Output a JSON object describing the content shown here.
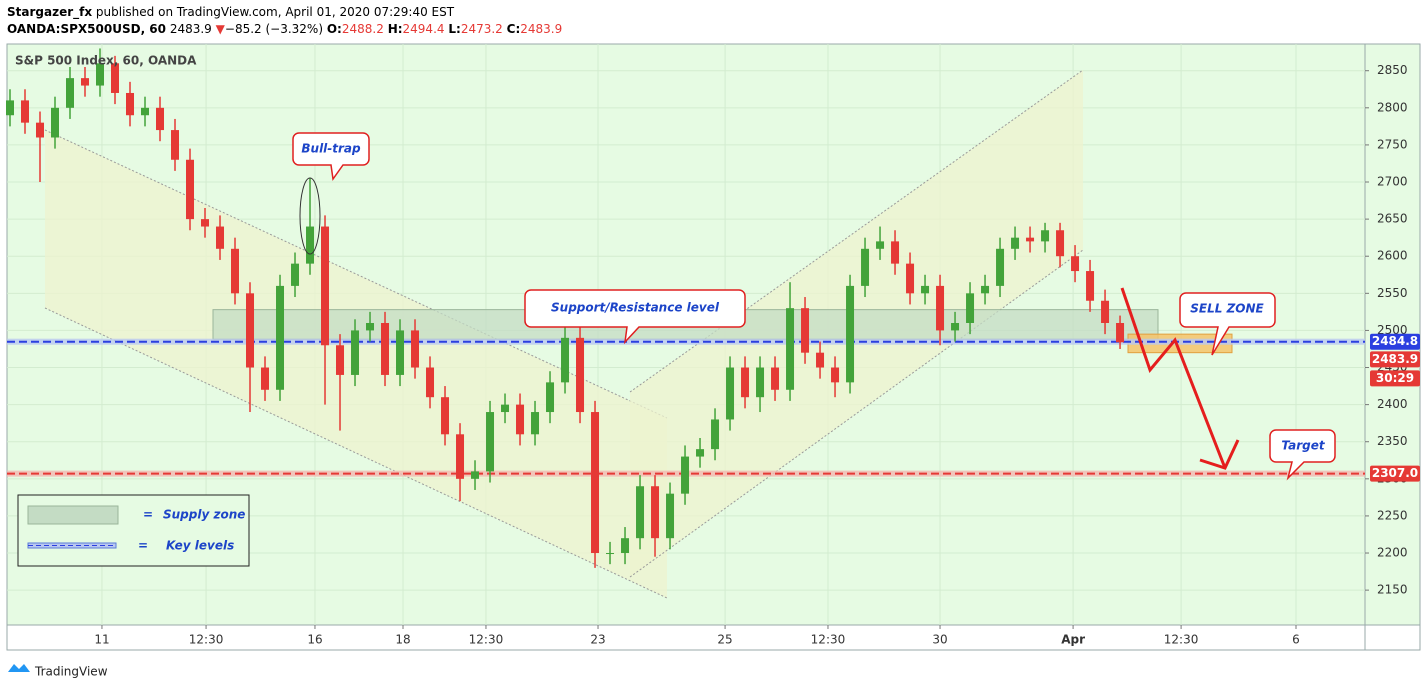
{
  "header": {
    "publisher": "Stargazer_fx",
    "published": "published on TradingView.com, April 01, 2020 07:29:40 EST",
    "symbol": "OANDA:SPX500USD, 60",
    "price": "2483.9",
    "arrow": "▼",
    "change": "−85.2 (−3.32%)",
    "o_label": "O:",
    "open": "2488.2",
    "h_label": "H:",
    "high": "2494.4",
    "l_label": "L:",
    "low": "2473.2",
    "c_label": "C:",
    "close": "2483.9"
  },
  "chart_data": {
    "type": "candlestick",
    "title": "S&P 500 Index, 60, OANDA",
    "x": [
      0,
      1,
      2,
      3,
      4,
      5,
      6,
      7,
      8,
      9,
      10,
      11,
      12,
      13,
      14,
      15,
      16,
      17,
      18,
      19,
      20,
      21,
      22,
      23,
      24,
      25,
      26,
      27,
      28,
      29,
      30,
      31,
      32,
      33,
      34,
      35,
      36,
      37,
      38,
      39,
      40,
      41,
      42,
      43,
      44,
      45,
      46,
      47,
      48,
      49,
      50,
      51,
      52,
      53,
      54,
      55,
      56,
      57,
      58,
      59,
      60,
      61,
      62,
      63,
      64,
      65,
      66,
      67,
      68,
      69,
      70,
      71,
      72,
      73,
      74
    ],
    "open": [
      2790,
      2810,
      2780,
      2760,
      2800,
      2840,
      2830,
      2860,
      2820,
      2790,
      2800,
      2770,
      2730,
      2650,
      2640,
      2610,
      2550,
      2450,
      2420,
      2560,
      2590,
      2640,
      2480,
      2440,
      2500,
      2510,
      2440,
      2500,
      2450,
      2410,
      2360,
      2300,
      2310,
      2390,
      2400,
      2360,
      2390,
      2430,
      2490,
      2390,
      2200,
      2200,
      2220,
      2290,
      2220,
      2280,
      2330,
      2340,
      2380,
      2450,
      2410,
      2450,
      2420,
      2530,
      2470,
      2450,
      2430,
      2560,
      2610,
      2620,
      2590,
      2550,
      2560,
      2500,
      2510,
      2550,
      2560,
      2610,
      2625,
      2620,
      2635,
      2600,
      2580,
      2540,
      2510
    ],
    "high": [
      2825,
      2825,
      2795,
      2815,
      2855,
      2855,
      2880,
      2870,
      2835,
      2815,
      2815,
      2785,
      2745,
      2665,
      2655,
      2625,
      2565,
      2465,
      2575,
      2605,
      2705,
      2655,
      2495,
      2515,
      2525,
      2525,
      2515,
      2515,
      2465,
      2425,
      2375,
      2325,
      2405,
      2415,
      2415,
      2405,
      2445,
      2505,
      2505,
      2405,
      2215,
      2235,
      2305,
      2305,
      2295,
      2345,
      2355,
      2395,
      2465,
      2465,
      2465,
      2465,
      2565,
      2545,
      2485,
      2465,
      2575,
      2625,
      2640,
      2635,
      2605,
      2575,
      2575,
      2525,
      2565,
      2575,
      2625,
      2640,
      2640,
      2645,
      2645,
      2615,
      2595,
      2555,
      2520
    ],
    "low": [
      2775,
      2765,
      2700,
      2745,
      2785,
      2815,
      2815,
      2805,
      2775,
      2775,
      2755,
      2715,
      2635,
      2625,
      2595,
      2535,
      2390,
      2405,
      2405,
      2545,
      2575,
      2400,
      2365,
      2425,
      2485,
      2425,
      2425,
      2435,
      2395,
      2345,
      2270,
      2285,
      2295,
      2375,
      2345,
      2345,
      2375,
      2415,
      2375,
      2180,
      2185,
      2185,
      2205,
      2195,
      2205,
      2265,
      2315,
      2325,
      2365,
      2395,
      2390,
      2405,
      2405,
      2455,
      2435,
      2410,
      2415,
      2545,
      2595,
      2575,
      2535,
      2535,
      2480,
      2485,
      2495,
      2535,
      2545,
      2595,
      2605,
      2605,
      2585,
      2565,
      2525,
      2495,
      2475
    ],
    "close": [
      2810,
      2780,
      2760,
      2800,
      2840,
      2830,
      2860,
      2820,
      2790,
      2800,
      2770,
      2730,
      2650,
      2640,
      2610,
      2550,
      2450,
      2420,
      2560,
      2590,
      2640,
      2480,
      2440,
      2500,
      2510,
      2440,
      2500,
      2450,
      2410,
      2360,
      2300,
      2310,
      2390,
      2400,
      2360,
      2390,
      2430,
      2490,
      2390,
      2200,
      2200,
      2220,
      2290,
      2220,
      2280,
      2330,
      2340,
      2380,
      2450,
      2410,
      2450,
      2420,
      2530,
      2470,
      2450,
      2430,
      2560,
      2610,
      2620,
      2590,
      2550,
      2560,
      2500,
      2510,
      2550,
      2560,
      2610,
      2625,
      2620,
      2635,
      2600,
      2580,
      2540,
      2510,
      2484
    ],
    "up_color": "#43a33a",
    "down_color": "#e53935",
    "xlim": [
      -0.2,
      90.33
    ],
    "xticks": [
      {
        "value": 6.13,
        "label": "11"
      },
      {
        "value": 13.07,
        "label": "12:30"
      },
      {
        "value": 20.33,
        "label": "16"
      },
      {
        "value": 26.2,
        "label": "18"
      },
      {
        "value": 31.73,
        "label": "12:30"
      },
      {
        "value": 39.2,
        "label": "23"
      },
      {
        "value": 47.67,
        "label": "25"
      },
      {
        "value": 54.53,
        "label": "12:30"
      },
      {
        "value": 62,
        "label": "30"
      },
      {
        "value": 70.87,
        "label": "Apr"
      },
      {
        "value": 78.07,
        "label": "12:30"
      },
      {
        "value": 85.73,
        "label": "6"
      }
    ],
    "ylim": [
      2103,
      2886
    ],
    "yticks": [
      2150,
      2200,
      2250,
      2300,
      2350,
      2400,
      2450,
      2500,
      2550,
      2600,
      2650,
      2700,
      2750,
      2800,
      2850
    ],
    "key_level": 2484.8,
    "key_color": "#2b3fe0",
    "target_level": {
      "value": 2307,
      "label": "2307.0"
    },
    "target_color": "#e53935",
    "last_price": 2483.9,
    "countdown": "30:29",
    "supply_zone": [
      2488,
      2528
    ],
    "sell_zone": [
      2470,
      2495
    ],
    "annotations": {
      "bull_trap": "Bull-trap",
      "sr": "Support/Resistance level",
      "sell": "SELL ZONE",
      "target": "Target"
    },
    "legend": {
      "eq": "=",
      "supply": "Supply zone",
      "key": "Key levels"
    }
  },
  "footer": "TradingView"
}
